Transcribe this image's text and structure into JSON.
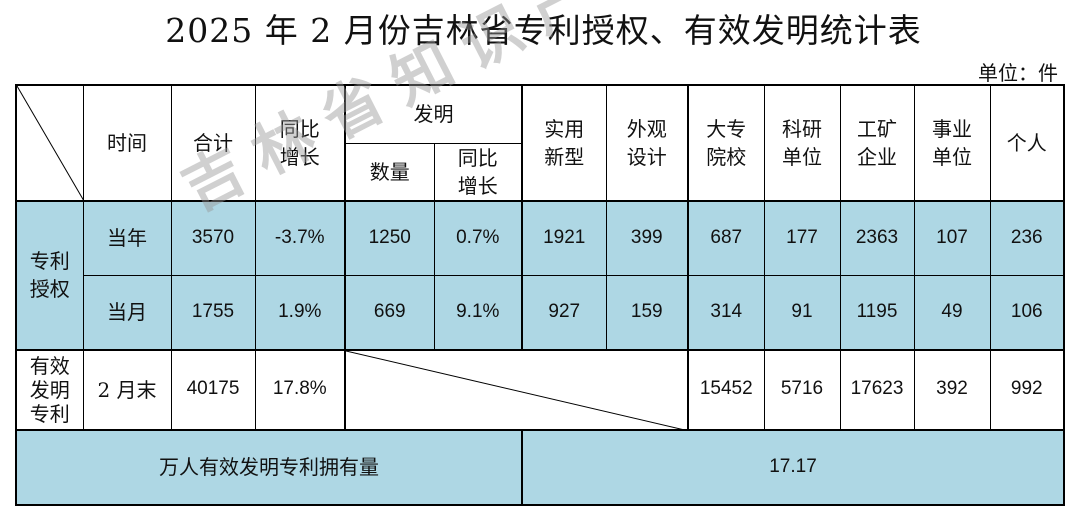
{
  "title": "2025 年 2 月份吉林省专利授权、有效发明统计表",
  "unit": "单位：件",
  "header": {
    "time": "时间",
    "total": "合计",
    "yoy": [
      "同比",
      "增长"
    ],
    "invention": "发明",
    "inv_count": "数量",
    "inv_yoy": [
      "同比",
      "增长"
    ],
    "utility": [
      "实用",
      "新型"
    ],
    "design": [
      "外观",
      "设计"
    ],
    "college": [
      "大专",
      "院校"
    ],
    "research": [
      "科研",
      "单位"
    ],
    "enterprise": [
      "工矿",
      "企业"
    ],
    "institution": [
      "事业",
      "单位"
    ],
    "individual": "个人"
  },
  "patent_grant_label": [
    "专利",
    "授权"
  ],
  "rows": {
    "year": {
      "label": "当年",
      "total": "3570",
      "yoy": "-3.7%",
      "inv_count": "1250",
      "inv_yoy": "0.7%",
      "utility": "1921",
      "design": "399",
      "college": "687",
      "research": "177",
      "enterprise": "2363",
      "institution": "107",
      "individual": "236"
    },
    "month": {
      "label": "当月",
      "total": "1755",
      "yoy": "1.9%",
      "inv_count": "669",
      "inv_yoy": "9.1%",
      "utility": "927",
      "design": "159",
      "college": "314",
      "research": "91",
      "enterprise": "1195",
      "institution": "49",
      "individual": "106"
    },
    "valid": {
      "group_label": [
        "有效",
        "发明",
        "专利"
      ],
      "label": "2 月末",
      "total": "40175",
      "yoy": "17.8%",
      "college": "15452",
      "research": "5716",
      "enterprise": "17623",
      "institution": "392",
      "individual": "992"
    }
  },
  "per_10k": {
    "label": "万人有效发明专利拥有量",
    "value": "17.17"
  },
  "watermark": "吉林省知识产权保护中心"
}
